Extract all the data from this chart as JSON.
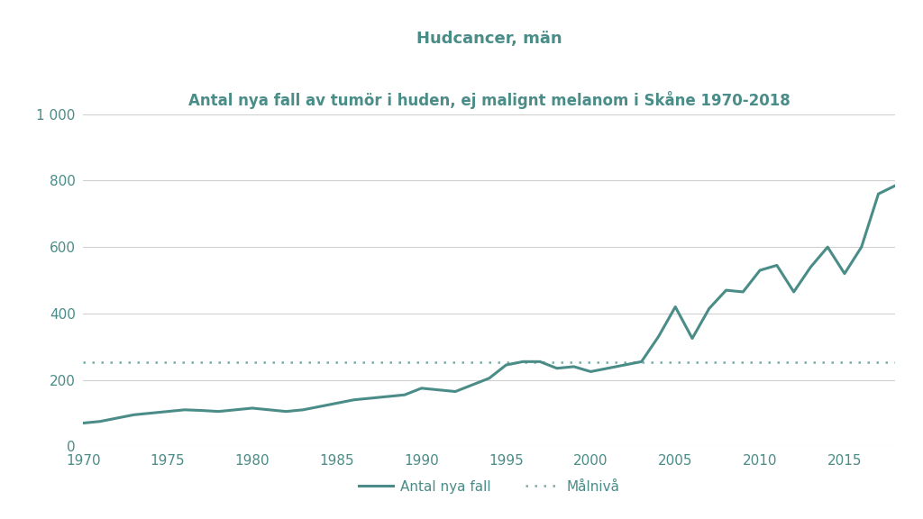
{
  "title_line1": "Hudcancer, män",
  "title_line2": "Antal nya fall av tumör i huden, ej malignt melanom i Skåne 1970-2018",
  "line_color": "#4a8c87",
  "dotted_color": "#7aaba7",
  "target_level": 252,
  "years": [
    1970,
    1971,
    1972,
    1973,
    1974,
    1975,
    1976,
    1977,
    1978,
    1979,
    1980,
    1981,
    1982,
    1983,
    1984,
    1985,
    1986,
    1987,
    1988,
    1989,
    1990,
    1991,
    1992,
    1993,
    1994,
    1995,
    1996,
    1997,
    1998,
    1999,
    2000,
    2001,
    2002,
    2003,
    2004,
    2005,
    2006,
    2007,
    2008,
    2009,
    2010,
    2011,
    2012,
    2013,
    2014,
    2015,
    2016,
    2017,
    2018
  ],
  "values": [
    70,
    75,
    85,
    95,
    100,
    105,
    110,
    108,
    105,
    110,
    115,
    110,
    105,
    110,
    120,
    130,
    140,
    145,
    150,
    155,
    175,
    170,
    165,
    185,
    205,
    245,
    255,
    255,
    235,
    240,
    225,
    235,
    245,
    255,
    330,
    420,
    325,
    415,
    470,
    465,
    530,
    545,
    465,
    540,
    600,
    520,
    600,
    760,
    785
  ],
  "ylim": [
    0,
    1000
  ],
  "yticks": [
    0,
    200,
    400,
    600,
    800,
    1000
  ],
  "ytick_labels": [
    "0",
    "200",
    "400",
    "600",
    "800",
    "1 000"
  ],
  "xticks": [
    1970,
    1975,
    1980,
    1985,
    1990,
    1995,
    2000,
    2005,
    2010,
    2015
  ],
  "legend_label_line": "Antal nya fall",
  "legend_label_dot": "Målnivå",
  "background_color": "#ffffff",
  "grid_color": "#d0d0d0",
  "text_color": "#4a8c87",
  "tick_color": "#4a8c87",
  "line_width": 2.2,
  "dotted_linewidth": 1.8,
  "title1_fontsize": 13,
  "title2_fontsize": 12,
  "tick_fontsize": 11,
  "legend_fontsize": 11
}
